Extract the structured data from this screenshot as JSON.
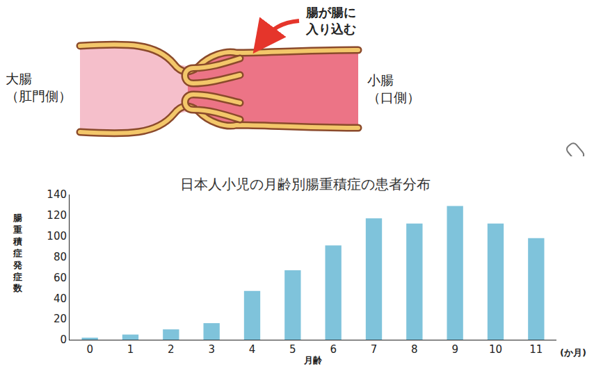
{
  "diagram": {
    "arrow_label": [
      "腸が腸に",
      "入り込む"
    ],
    "left_label": [
      "大腸",
      "（肛門側）"
    ],
    "right_label": [
      "小腸",
      "（口側）"
    ]
  },
  "chart_data": {
    "type": "bar",
    "title": "日本人小児の月齢別腸重積症の患者分布",
    "categories": [
      "0",
      "1",
      "2",
      "3",
      "4",
      "5",
      "6",
      "7",
      "8",
      "9",
      "10",
      "11"
    ],
    "values": [
      2,
      5,
      10,
      16,
      47,
      67,
      91,
      117,
      112,
      129,
      112,
      98
    ],
    "color": "#7fc3db",
    "x_label": "月齢",
    "y_label": "腸重積症発症数",
    "annotations": [
      "(か月)"
    ],
    "ylim": [
      0,
      140
    ],
    "yticks": [
      0,
      20,
      40,
      60,
      80,
      100,
      120,
      140
    ],
    "grid": false
  }
}
